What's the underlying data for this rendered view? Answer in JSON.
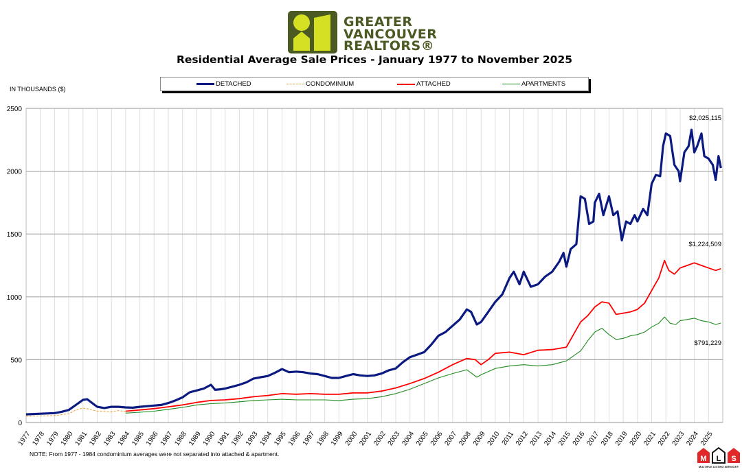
{
  "brand": {
    "line1": "GREATER",
    "line2": "VANCOUVER",
    "line3": "REALTORS®",
    "logo_colors": {
      "dark": "#4b5a23",
      "light": "#d4e021"
    }
  },
  "footer": {
    "note": "NOTE:  From 1977 - 1984 condominium averages were not separated into attached & apartment.",
    "mls_logo": "MLS MULTIPLE LISTING SERVICE®"
  },
  "chart_data": {
    "type": "line",
    "title": "Residential Average Sale Prices  -  January 1977 to November 2025",
    "ylabel": "IN THOUSANDS ($)",
    "ylim": [
      0,
      2500
    ],
    "yticks": [
      0,
      500,
      1000,
      1500,
      2000,
      2500
    ],
    "xlim": [
      1977,
      2026
    ],
    "xticks": [
      "1977",
      "1978",
      "1979",
      "1980",
      "1981",
      "1982",
      "1983",
      "1984",
      "1985",
      "1986",
      "1987",
      "1988",
      "1989",
      "1990",
      "1991",
      "1992",
      "1993",
      "1994",
      "1995",
      "1996",
      "1997",
      "1998",
      "1999",
      "2000",
      "2001",
      "2002",
      "2003",
      "2004",
      "2005",
      "2006",
      "2007",
      "2008",
      "2009",
      "2010",
      "2011",
      "2012",
      "2013",
      "2014",
      "2015",
      "2016",
      "2017",
      "2018",
      "2019",
      "2020",
      "2021",
      "2022",
      "2023",
      "2024",
      "2025"
    ],
    "grid": true,
    "legend_placement": "top",
    "annotations": [
      {
        "text": "$2,025,115",
        "series": "DETACHED"
      },
      {
        "text": "$1,224,509",
        "series": "ATTACHED"
      },
      {
        "text": "$791,229",
        "series": "APARTMENTS"
      }
    ],
    "series": [
      {
        "name": "DETACHED",
        "color": "#0b1a80",
        "style": "solid-thick",
        "x": [
          1977,
          1978,
          1979,
          1979.5,
          1980,
          1980.5,
          1981,
          1981.3,
          1981.7,
          1982,
          1982.5,
          1983,
          1983.5,
          1984,
          1984.5,
          1985,
          1986,
          1986.5,
          1987,
          1987.5,
          1988,
          1988.5,
          1989,
          1989.5,
          1990,
          1990.3,
          1990.7,
          1991,
          1991.5,
          1992,
          1992.5,
          1993,
          1993.5,
          1994,
          1994.5,
          1995,
          1995.5,
          1996,
          1996.5,
          1997,
          1997.5,
          1998,
          1998.5,
          1999,
          1999.5,
          2000,
          2000.5,
          2001,
          2001.5,
          2002,
          2002.5,
          2003,
          2003.5,
          2004,
          2004.5,
          2005,
          2005.5,
          2006,
          2006.5,
          2007,
          2007.5,
          2008,
          2008.3,
          2008.7,
          2009,
          2009.5,
          2010,
          2010.5,
          2011,
          2011.3,
          2011.7,
          2012,
          2012.5,
          2013,
          2013.5,
          2014,
          2014.5,
          2014.8,
          2015,
          2015.3,
          2015.7,
          2016,
          2016.3,
          2016.6,
          2016.9,
          2017,
          2017.3,
          2017.6,
          2018,
          2018.3,
          2018.6,
          2018.9,
          2019.2,
          2019.5,
          2019.8,
          2020,
          2020.4,
          2020.7,
          2021,
          2021.3,
          2021.6,
          2021.8,
          2022,
          2022.3,
          2022.6,
          2022.9,
          2023,
          2023.3,
          2023.6,
          2023.8,
          2024,
          2024.2,
          2024.5,
          2024.7,
          2025,
          2025.3,
          2025.5,
          2025.7,
          2025.87
        ],
        "values": [
          65,
          70,
          75,
          85,
          100,
          140,
          180,
          185,
          150,
          125,
          115,
          125,
          125,
          120,
          118,
          125,
          135,
          140,
          155,
          175,
          200,
          240,
          255,
          270,
          300,
          260,
          265,
          270,
          285,
          300,
          320,
          350,
          360,
          370,
          395,
          425,
          400,
          405,
          400,
          390,
          385,
          370,
          355,
          355,
          370,
          385,
          375,
          370,
          375,
          390,
          415,
          430,
          480,
          520,
          540,
          560,
          620,
          690,
          720,
          770,
          820,
          900,
          880,
          780,
          800,
          880,
          960,
          1020,
          1150,
          1200,
          1100,
          1200,
          1080,
          1100,
          1160,
          1200,
          1280,
          1350,
          1240,
          1380,
          1420,
          1800,
          1780,
          1580,
          1600,
          1750,
          1820,
          1650,
          1800,
          1650,
          1680,
          1450,
          1600,
          1580,
          1650,
          1600,
          1700,
          1650,
          1900,
          1970,
          1960,
          2200,
          2300,
          2280,
          2050,
          2000,
          1920,
          2150,
          2200,
          2330,
          2150,
          2200,
          2300,
          2120,
          2100,
          2050,
          1930,
          2120,
          2025.115
        ]
      },
      {
        "name": "CONDOMINIUM",
        "color": "#f0a030",
        "style": "dashed",
        "x": [
          1977,
          1978,
          1979,
          1980,
          1980.5,
          1981,
          1981.5,
          1982,
          1983,
          1983.5,
          1984
        ],
        "values": [
          50,
          52,
          55,
          70,
          100,
          115,
          105,
          90,
          85,
          95,
          88
        ]
      },
      {
        "name": "ATTACHED",
        "color": "#ff0000",
        "style": "solid",
        "x": [
          1984,
          1985,
          1986,
          1987,
          1988,
          1989,
          1990,
          1991,
          1992,
          1993,
          1994,
          1995,
          1996,
          1997,
          1998,
          1999,
          2000,
          2001,
          2002,
          2003,
          2004,
          2005,
          2006,
          2007,
          2008,
          2008.6,
          2009,
          2009.5,
          2010,
          2011,
          2012,
          2013,
          2014,
          2015,
          2015.5,
          2016,
          2016.5,
          2017,
          2017.5,
          2018,
          2018.5,
          2019,
          2019.5,
          2020,
          2020.5,
          2021,
          2021.5,
          2021.9,
          2022.2,
          2022.6,
          2023,
          2023.5,
          2024,
          2024.5,
          2025,
          2025.5,
          2025.87
        ],
        "values": [
          90,
          100,
          110,
          125,
          140,
          160,
          175,
          180,
          190,
          205,
          215,
          230,
          225,
          230,
          225,
          225,
          235,
          235,
          250,
          275,
          310,
          350,
          400,
          460,
          510,
          500,
          460,
          500,
          550,
          560,
          540,
          575,
          580,
          600,
          700,
          800,
          850,
          920,
          960,
          950,
          860,
          870,
          880,
          900,
          950,
          1050,
          1150,
          1290,
          1210,
          1180,
          1230,
          1250,
          1270,
          1250,
          1230,
          1210,
          1224.509
        ]
      },
      {
        "name": "APARTMENTS",
        "color": "#1f8a1f",
        "style": "solid-thin",
        "x": [
          1984,
          1985,
          1986,
          1987,
          1988,
          1989,
          1990,
          1991,
          1992,
          1993,
          1994,
          1995,
          1996,
          1997,
          1998,
          1999,
          2000,
          2001,
          2002,
          2003,
          2004,
          2005,
          2006,
          2007,
          2008,
          2008.7,
          2009,
          2010,
          2011,
          2012,
          2013,
          2014,
          2015,
          2016,
          2016.5,
          2017,
          2017.5,
          2018,
          2018.5,
          2019,
          2019.5,
          2020,
          2020.5,
          2021,
          2021.5,
          2021.9,
          2022.3,
          2022.7,
          2023,
          2023.5,
          2024,
          2024.5,
          2025,
          2025.5,
          2025.87
        ],
        "values": [
          75,
          82,
          90,
          105,
          120,
          140,
          150,
          155,
          165,
          175,
          180,
          185,
          180,
          180,
          180,
          175,
          185,
          190,
          205,
          230,
          265,
          310,
          355,
          390,
          420,
          360,
          380,
          430,
          450,
          460,
          450,
          460,
          490,
          570,
          650,
          720,
          750,
          700,
          660,
          670,
          690,
          700,
          720,
          760,
          790,
          840,
          790,
          780,
          810,
          820,
          830,
          810,
          800,
          780,
          791.229
        ]
      }
    ]
  }
}
